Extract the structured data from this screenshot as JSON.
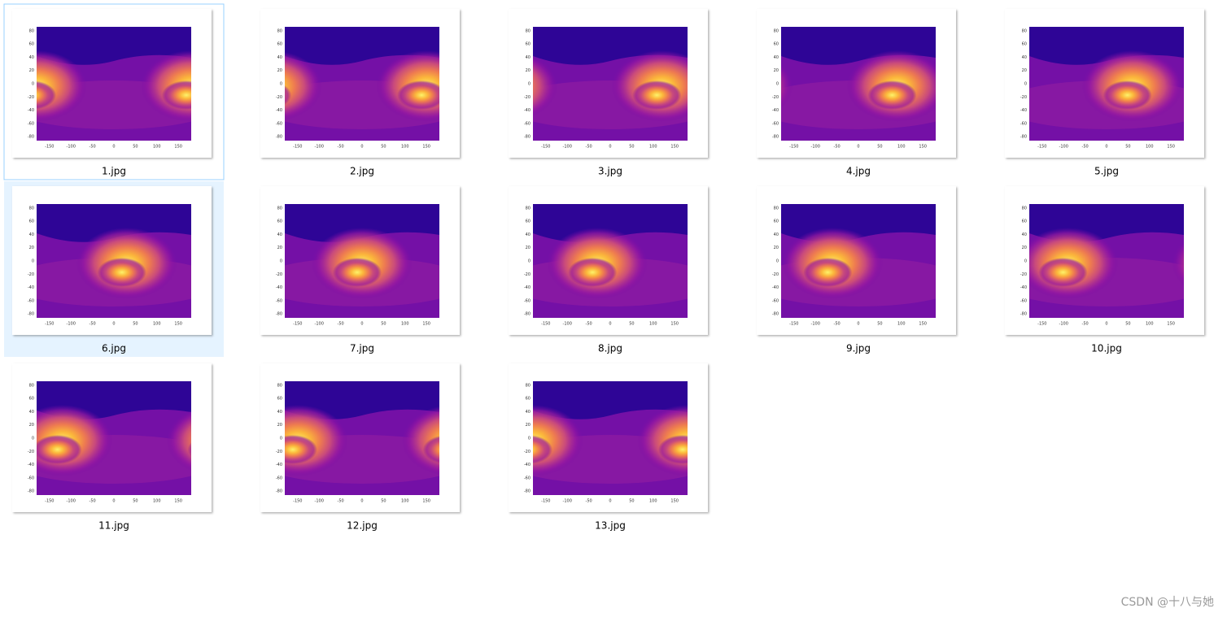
{
  "files": [
    "1.jpg",
    "2.jpg",
    "3.jpg",
    "4.jpg",
    "5.jpg",
    "6.jpg",
    "7.jpg",
    "8.jpg",
    "9.jpg",
    "10.jpg",
    "11.jpg",
    "12.jpg",
    "13.jpg"
  ],
  "plot": {
    "xlim": [
      -180,
      180
    ],
    "ylim": [
      -86,
      86
    ],
    "xticks": [
      -150,
      -100,
      -50,
      0,
      50,
      100,
      150
    ],
    "yticks": [
      80,
      60,
      40,
      20,
      0,
      -20,
      -40,
      -60,
      -80
    ]
  },
  "watermark": "CSDN @十八与她"
}
